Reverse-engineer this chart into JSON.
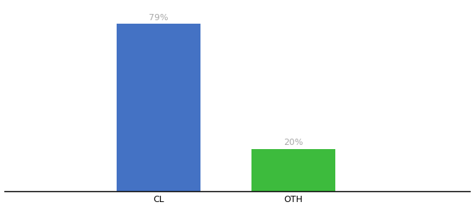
{
  "categories": [
    "CL",
    "OTH"
  ],
  "values": [
    79,
    20
  ],
  "bar_colors": [
    "#4472c4",
    "#3dbb3d"
  ],
  "labels": [
    "79%",
    "20%"
  ],
  "label_color": "#aaaaaa",
  "background_color": "#ffffff",
  "ylim": [
    0,
    88
  ],
  "bar_width": 0.18,
  "x_positions": [
    0.33,
    0.62
  ],
  "xlim": [
    0.0,
    1.0
  ],
  "label_fontsize": 9,
  "tick_fontsize": 9,
  "spine_color": "#111111"
}
